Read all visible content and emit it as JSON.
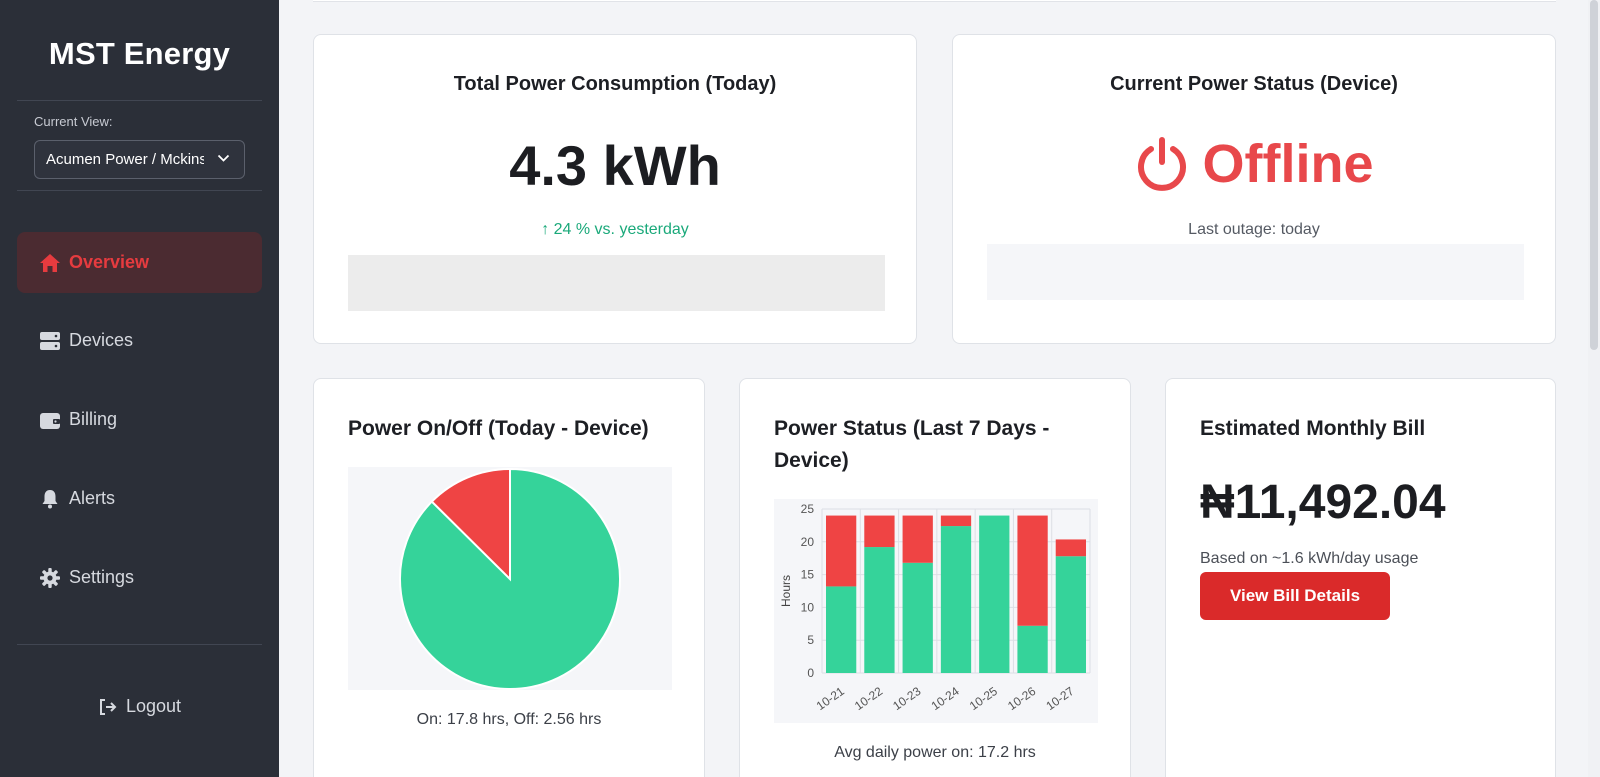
{
  "sidebar": {
    "brand": "MST Energy",
    "current_view_label": "Current View:",
    "current_view_value": "Acumen Power / Mckinsey",
    "items": [
      {
        "label": "Overview",
        "icon": "home-icon",
        "active": true
      },
      {
        "label": "Devices",
        "icon": "server-icon",
        "active": false
      },
      {
        "label": "Billing",
        "icon": "wallet-icon",
        "active": false
      },
      {
        "label": "Alerts",
        "icon": "bell-icon",
        "active": false
      },
      {
        "label": "Settings",
        "icon": "gear-icon",
        "active": false
      }
    ],
    "logout_label": "Logout"
  },
  "consumption": {
    "title": "Total Power Consumption (Today)",
    "value": "4.3 kWh",
    "delta": "↑ 24 % vs. yesterday"
  },
  "status": {
    "title": "Current Power Status (Device)",
    "value": "Offline",
    "last_outage": "Last outage: today",
    "color": "#e8484b"
  },
  "onoff": {
    "title": "Power On/Off (Today - Device)",
    "caption": "On: 17.8 hrs, Off: 2.56 hrs"
  },
  "weekly": {
    "title": "Power Status (Last 7 Days - Device)",
    "caption": "Avg daily power on: 17.2 hrs"
  },
  "bill": {
    "title": "Estimated Monthly Bill",
    "amount": "₦11,492.04",
    "basis": "Based on ~1.6 kWh/day usage",
    "button_label": "View Bill Details"
  },
  "chart_data": [
    {
      "type": "pie",
      "labels": [
        "On",
        "Off"
      ],
      "values": [
        17.8,
        2.56
      ],
      "colors": [
        "#35d39a",
        "#ef4444"
      ]
    },
    {
      "type": "bar",
      "stacked": true,
      "categories": [
        "10-21",
        "10-22",
        "10-23",
        "10-24",
        "10-25",
        "10-26",
        "10-27"
      ],
      "series": [
        {
          "values": [
            13.2,
            19.2,
            16.8,
            22.4,
            24,
            7.2,
            17.8
          ],
          "color": "#35d39a"
        },
        {
          "values": [
            10.8,
            4.8,
            7.2,
            1.6,
            0,
            16.8,
            2.56
          ],
          "color": "#ef4444"
        }
      ],
      "ylabel": "Hours",
      "ylim": [
        0,
        25
      ],
      "yticks": [
        0,
        5,
        10,
        15,
        20,
        25
      ],
      "grid": true
    }
  ]
}
